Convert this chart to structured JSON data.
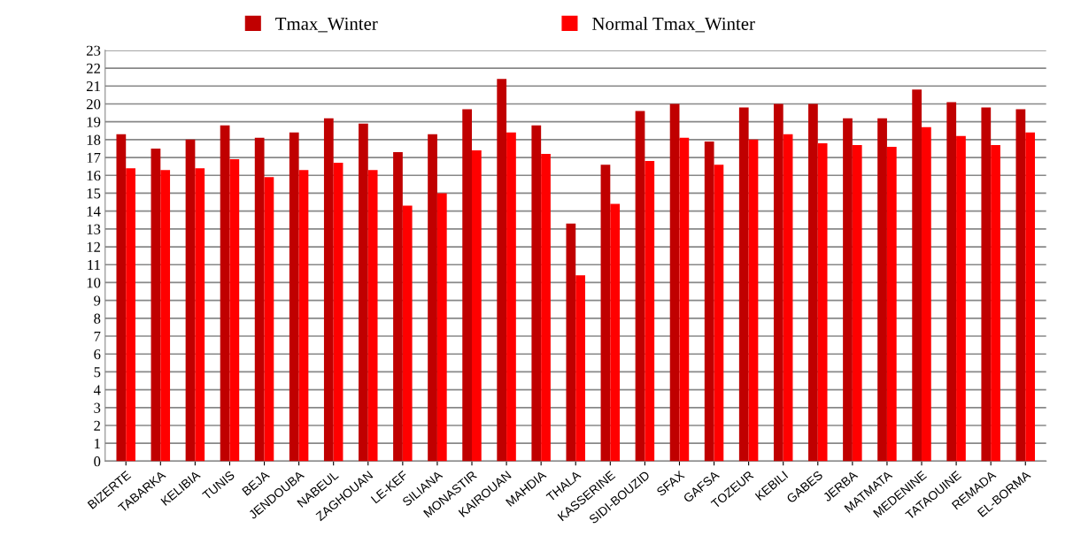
{
  "chart_data": {
    "type": "bar",
    "categories": [
      "BIZERTE",
      "TABARKA",
      "KELIBIA",
      "TUNIS",
      "BEJA",
      "JENDOUBA",
      "NABEUL",
      "ZAGHOUAN",
      "LE-KEF",
      "SILIANA",
      "MONASTIR",
      "KAIROUAN",
      "MAHDIA",
      "THALA",
      "KASSERINE",
      "SIDI-BOUZID",
      "SFAX",
      "GAFSA",
      "TOZEUR",
      "KEBILI",
      "GABES",
      "JERBA",
      "MATMATA",
      "MEDENINE",
      "TATAOUINE",
      "REMADA",
      "EL-BORMA"
    ],
    "series": [
      {
        "name": "Tmax_Winter",
        "color": "#c00000",
        "values": [
          18.3,
          17.5,
          18.0,
          18.8,
          18.1,
          18.4,
          19.2,
          18.9,
          17.3,
          18.3,
          19.7,
          21.4,
          18.8,
          13.3,
          16.6,
          19.6,
          20.0,
          17.9,
          19.8,
          20.0,
          20.0,
          19.2,
          19.2,
          20.8,
          20.1,
          19.8,
          19.7
        ]
      },
      {
        "name": "Normal Tmax_Winter",
        "color": "#ff0000",
        "values": [
          16.4,
          16.3,
          16.4,
          16.9,
          15.9,
          16.3,
          16.7,
          16.3,
          14.3,
          15.0,
          17.4,
          18.4,
          17.2,
          10.4,
          14.4,
          16.8,
          18.1,
          16.6,
          18.0,
          18.3,
          17.8,
          17.7,
          17.6,
          18.7,
          18.2,
          17.7,
          18.4
        ]
      }
    ],
    "ylim": [
      0,
      23
    ],
    "yticks": [
      0,
      1,
      2,
      3,
      4,
      5,
      6,
      7,
      8,
      9,
      10,
      11,
      12,
      13,
      14,
      15,
      16,
      17,
      18,
      19,
      20,
      21,
      22,
      23
    ],
    "grid": "y",
    "legend": "top"
  }
}
